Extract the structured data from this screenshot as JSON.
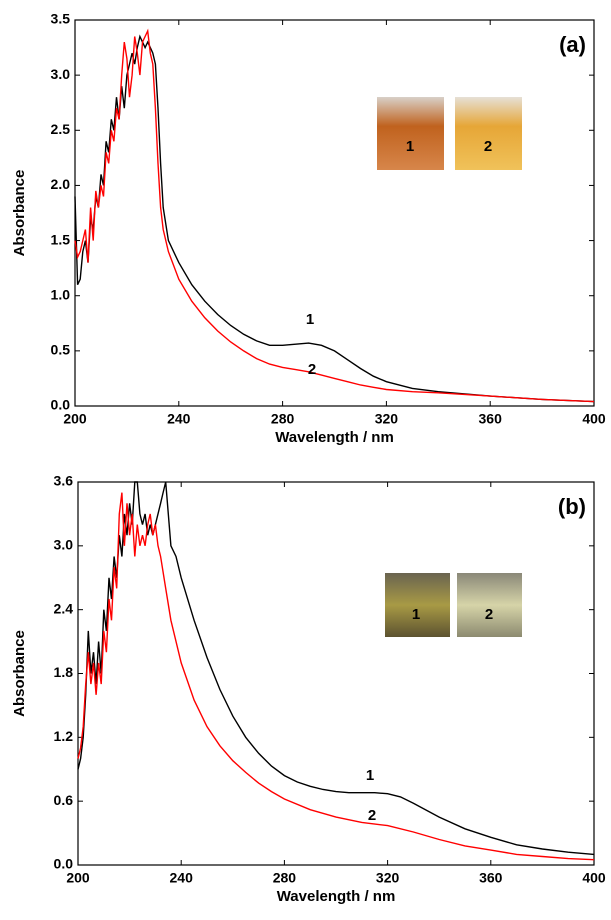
{
  "chart_data": [
    {
      "type": "line",
      "title": "(a)",
      "xlabel": "Wavelength / nm",
      "ylabel": "Absorbance",
      "xlim": [
        200,
        400
      ],
      "xticks": [
        200,
        240,
        280,
        320,
        360,
        400
      ],
      "ylim": [
        0,
        3.5
      ],
      "yticks": [
        {
          "value": 0,
          "label": "0.0"
        },
        0.5,
        {
          "value": 1,
          "label": "1.0"
        },
        1.5,
        {
          "value": 2,
          "label": "2.0"
        },
        2.5,
        {
          "value": 3,
          "label": "3.0"
        },
        3.5
      ],
      "inset_labels": [
        "1",
        "2"
      ],
      "series": [
        {
          "name": "1",
          "color": "#000000",
          "x": [
            200,
            201,
            202,
            203,
            204,
            205,
            206,
            207,
            208,
            209,
            210,
            211,
            212,
            213,
            214,
            215,
            216,
            217,
            218,
            219,
            220,
            221,
            222,
            223,
            224,
            225,
            226,
            227,
            228,
            229,
            230,
            231,
            232,
            233,
            234,
            236,
            240,
            245,
            250,
            255,
            260,
            265,
            270,
            275,
            280,
            285,
            290,
            295,
            300,
            305,
            310,
            315,
            320,
            330,
            340,
            360,
            380,
            400
          ],
          "values": [
            1.9,
            1.1,
            1.15,
            1.4,
            1.5,
            1.3,
            1.7,
            1.6,
            1.9,
            1.8,
            2.1,
            2.0,
            2.4,
            2.3,
            2.6,
            2.5,
            2.8,
            2.6,
            2.9,
            2.7,
            3.0,
            3.1,
            3.2,
            3.1,
            3.25,
            3.35,
            3.3,
            3.25,
            3.3,
            3.25,
            3.2,
            3.1,
            2.7,
            2.2,
            1.8,
            1.5,
            1.3,
            1.1,
            0.95,
            0.83,
            0.73,
            0.65,
            0.59,
            0.55,
            0.55,
            0.56,
            0.57,
            0.55,
            0.5,
            0.42,
            0.34,
            0.27,
            0.22,
            0.16,
            0.13,
            0.09,
            0.06,
            0.04
          ]
        },
        {
          "name": "2",
          "color": "#ff0000",
          "x": [
            200,
            201,
            202,
            203,
            204,
            205,
            206,
            207,
            208,
            209,
            210,
            211,
            212,
            213,
            214,
            215,
            216,
            217,
            218,
            219,
            220,
            221,
            222,
            223,
            224,
            225,
            226,
            227,
            228,
            229,
            230,
            231,
            232,
            233,
            234,
            236,
            240,
            245,
            250,
            255,
            260,
            265,
            270,
            275,
            280,
            285,
            290,
            295,
            300,
            305,
            310,
            315,
            320,
            330,
            340,
            360,
            380,
            400
          ],
          "values": [
            1.5,
            1.35,
            1.4,
            1.5,
            1.6,
            1.3,
            1.8,
            1.5,
            1.95,
            1.8,
            2.0,
            1.9,
            2.3,
            2.2,
            2.5,
            2.4,
            2.7,
            2.6,
            3.0,
            3.3,
            3.15,
            2.8,
            3.0,
            3.35,
            3.2,
            3.0,
            3.3,
            3.35,
            3.4,
            3.2,
            3.1,
            2.7,
            2.2,
            1.8,
            1.6,
            1.4,
            1.15,
            0.95,
            0.8,
            0.68,
            0.58,
            0.5,
            0.43,
            0.38,
            0.35,
            0.33,
            0.31,
            0.28,
            0.25,
            0.22,
            0.19,
            0.17,
            0.15,
            0.13,
            0.12,
            0.09,
            0.06,
            0.04
          ]
        }
      ]
    },
    {
      "type": "line",
      "title": "(b)",
      "xlabel": "Wavelength / nm",
      "ylabel": "Absorbance",
      "xlim": [
        200,
        400
      ],
      "xticks": [
        200,
        240,
        280,
        320,
        360,
        400
      ],
      "ylim": [
        0,
        3.6
      ],
      "yticks": [
        {
          "value": 0,
          "label": "0.0"
        },
        0.6,
        1.2,
        1.8,
        2.4,
        {
          "value": 3,
          "label": "3.0"
        },
        3.6
      ],
      "inset_labels": [
        "1",
        "2"
      ],
      "series": [
        {
          "name": "1",
          "color": "#000000",
          "x": [
            200,
            201,
            202,
            203,
            204,
            205,
            206,
            207,
            208,
            209,
            210,
            211,
            212,
            213,
            214,
            215,
            216,
            217,
            218,
            219,
            220,
            221,
            222,
            223,
            224,
            225,
            226,
            227,
            228,
            229,
            230,
            231,
            232,
            233,
            234,
            235,
            236,
            238,
            240,
            245,
            250,
            255,
            260,
            265,
            270,
            275,
            280,
            285,
            290,
            295,
            300,
            305,
            310,
            315,
            320,
            325,
            330,
            340,
            350,
            360,
            370,
            380,
            390,
            400
          ],
          "values": [
            0.9,
            1.0,
            1.2,
            1.6,
            2.2,
            1.8,
            2.0,
            1.7,
            2.1,
            1.8,
            2.4,
            2.2,
            2.7,
            2.5,
            2.9,
            2.7,
            3.1,
            2.9,
            3.3,
            3.1,
            3.4,
            3.2,
            3.6,
            3.6,
            3.3,
            3.2,
            3.3,
            3.1,
            3.2,
            3.1,
            3.2,
            3.3,
            3.4,
            3.5,
            3.6,
            3.3,
            3.0,
            2.9,
            2.7,
            2.3,
            1.95,
            1.65,
            1.4,
            1.2,
            1.05,
            0.93,
            0.84,
            0.78,
            0.74,
            0.71,
            0.69,
            0.68,
            0.68,
            0.68,
            0.67,
            0.64,
            0.58,
            0.45,
            0.34,
            0.26,
            0.19,
            0.15,
            0.12,
            0.1
          ]
        },
        {
          "name": "2",
          "color": "#ff0000",
          "x": [
            200,
            201,
            202,
            203,
            204,
            205,
            206,
            207,
            208,
            209,
            210,
            211,
            212,
            213,
            214,
            215,
            216,
            217,
            218,
            219,
            220,
            221,
            222,
            223,
            224,
            225,
            226,
            227,
            228,
            229,
            230,
            231,
            232,
            234,
            236,
            240,
            245,
            250,
            255,
            260,
            265,
            270,
            275,
            280,
            290,
            300,
            310,
            320,
            330,
            340,
            350,
            360,
            370,
            380,
            390,
            400
          ],
          "values": [
            1.0,
            1.1,
            1.3,
            1.7,
            2.0,
            1.7,
            1.9,
            1.6,
            1.9,
            1.7,
            2.2,
            2.0,
            2.5,
            2.3,
            2.8,
            2.6,
            3.3,
            3.5,
            3.0,
            3.4,
            3.1,
            3.3,
            2.9,
            3.2,
            3.0,
            3.1,
            3.0,
            3.2,
            3.3,
            3.1,
            3.2,
            3.0,
            2.9,
            2.6,
            2.3,
            1.9,
            1.55,
            1.3,
            1.12,
            0.98,
            0.87,
            0.77,
            0.69,
            0.62,
            0.52,
            0.45,
            0.4,
            0.37,
            0.31,
            0.24,
            0.18,
            0.14,
            0.1,
            0.08,
            0.06,
            0.05
          ]
        }
      ]
    }
  ]
}
